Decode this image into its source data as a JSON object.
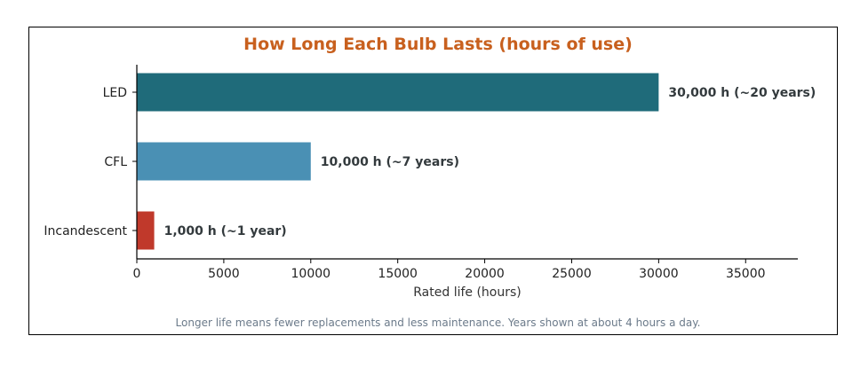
{
  "chart_data": {
    "type": "bar",
    "orientation": "horizontal",
    "title": "How Long Each Bulb Lasts (hours of use)",
    "xlabel": "Rated life (hours)",
    "ylabel": "",
    "xlim": [
      0,
      38000
    ],
    "xticks": [
      0,
      5000,
      10000,
      15000,
      20000,
      25000,
      30000,
      35000
    ],
    "categories": [
      "LED",
      "CFL",
      "Incandescent"
    ],
    "values": [
      30000,
      10000,
      1000
    ],
    "data_labels": [
      "30,000 h  (~20 years)",
      "10,000 h  (~7 years)",
      "1,000 h  (~1 year)"
    ],
    "bar_colors": [
      "#1f6b7a",
      "#4a90b4",
      "#c0392b"
    ],
    "title_color": "#c8601e",
    "footnote_color": "#6b7a8a",
    "grid": false,
    "legend": "none"
  },
  "footnote": "Longer life means fewer replacements and less maintenance. Years shown at about 4 hours a day."
}
